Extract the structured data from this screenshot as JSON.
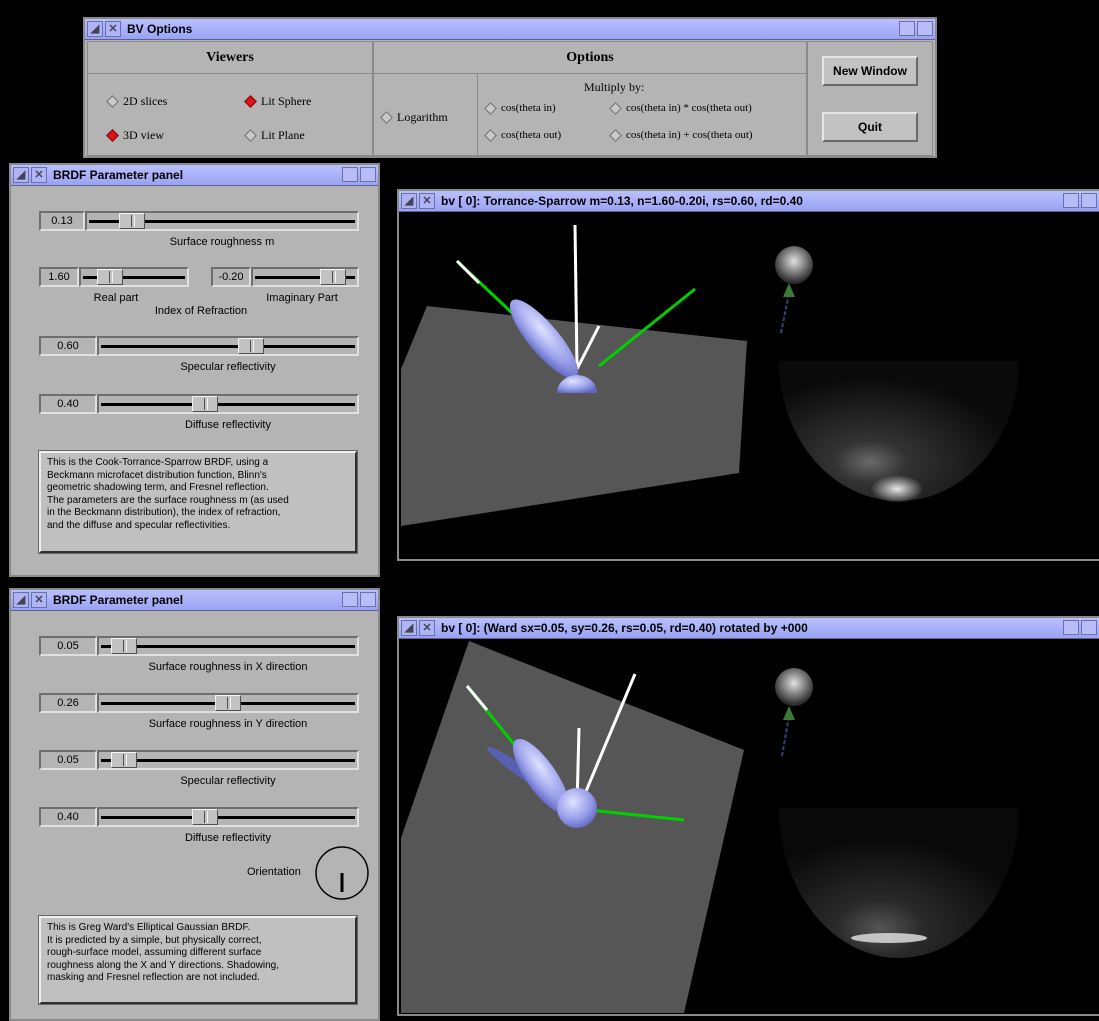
{
  "options_window": {
    "title": "BV Options",
    "viewers_header": "Viewers",
    "options_header": "Options",
    "viewers": [
      {
        "label": "2D slices",
        "selected": false
      },
      {
        "label": "Lit Sphere",
        "selected": true
      },
      {
        "label": "3D view",
        "selected": true
      },
      {
        "label": "Lit Plane",
        "selected": false
      }
    ],
    "logarithm_label": "Logarithm",
    "multiply_by_label": "Multiply by:",
    "multiply_options": [
      "cos(theta in)",
      "cos(theta in) * cos(theta out)",
      "cos(theta out)",
      "cos(theta in) + cos(theta out)"
    ],
    "new_window_label": "New Window",
    "quit_label": "Quit"
  },
  "panel1": {
    "title": "BRDF Parameter panel",
    "sliders": [
      {
        "value": "0.13",
        "caption": "Surface roughness  m",
        "position": 0.13
      },
      {
        "value": "1.60",
        "caption": "Real part",
        "position": 0.2
      },
      {
        "value": "-0.20",
        "caption": "Imaginary Part",
        "position": 0.86
      },
      {
        "value": "0.60",
        "caption": "Specular reflectivity",
        "position": 0.6
      },
      {
        "value": "0.40",
        "caption": "Diffuse reflectivity",
        "position": 0.4
      }
    ],
    "index_caption": "Index of Refraction",
    "description": [
      "This is the Cook-Torrance-Sparrow BRDF, using a",
      "Beckmann microfacet distribution function, Blinn's",
      "geometric shadowing term, and Fresnel reflection.",
      "The parameters are the surface roughness m (as used",
      "in the Beckmann distribution), the index of refraction,",
      "and the diffuse and specular reflectivities."
    ]
  },
  "panel2": {
    "title": "BRDF Parameter panel",
    "sliders": [
      {
        "value": "0.05",
        "caption": "Surface roughness  in X direction",
        "position": 0.05
      },
      {
        "value": "0.26",
        "caption": "Surface roughness  in Y direction",
        "position": 0.5
      },
      {
        "value": "0.05",
        "caption": "Specular reflectivity",
        "position": 0.05
      },
      {
        "value": "0.40",
        "caption": "Diffuse reflectivity",
        "position": 0.4
      }
    ],
    "orientation_label": "Orientation",
    "description": [
      "This is Greg Ward's Elliptical Gaussian BRDF.",
      "It is predicted by a simple, but physically correct,",
      "rough-surface model, assuming different surface",
      "roughness along the X and Y directions. Shadowing,",
      "masking and Fresnel reflection are not included."
    ]
  },
  "view1": {
    "title": "bv [   0]: Torrance-Sparrow  m=0.13, n=1.60-0.20i, rs=0.60, rd=0.40"
  },
  "view2": {
    "title": "bv [   0]: (Ward  sx=0.05, sy=0.26, rs=0.05, rd=0.40) rotated by +000"
  }
}
